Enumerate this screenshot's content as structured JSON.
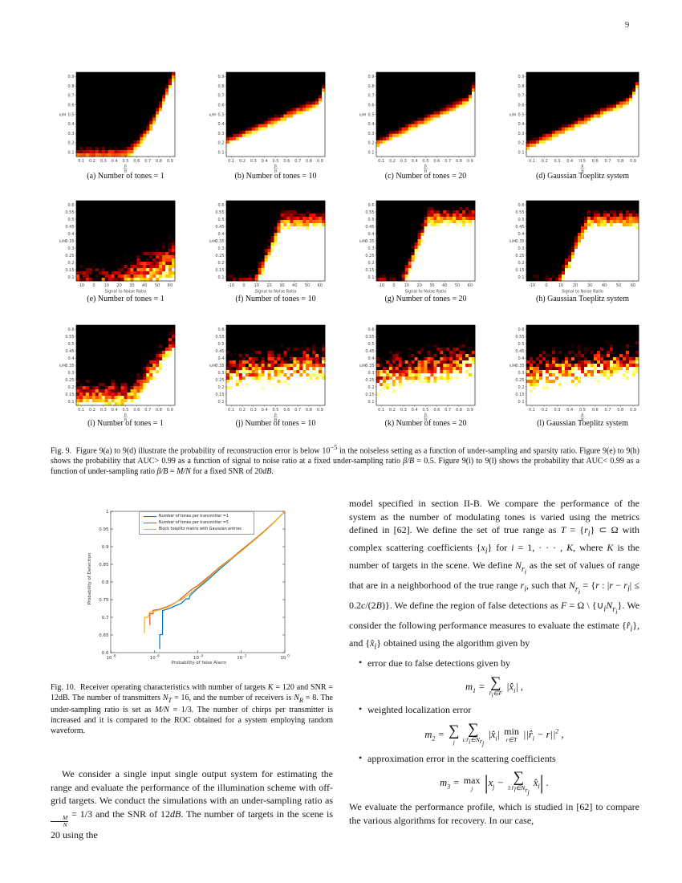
{
  "page": {
    "number": "9"
  },
  "figure9": {
    "caption_html": "Fig. 9.&nbsp;&nbsp;Figure 9(a) to 9(d) illustrate the probability of reconstruction error is below 10<sup>&minus;5</sup> in the noiseless setting as a function of under-sampling and sparsity ratio. Figure 9(e) to 9(h) shows the probability that AUC&gt; 0.99 as a function of signal to noise ratio at a fixed under-sampling ratio <i>&beta;/B</i> = 0.5. Figure 9(i) to 9(l) shows the probability that AUC&lt; 0.99 as a function of under-sampling ratio <i>&beta;/B</i> = <i>M/N</i> for a fixed SNR of 20<i>dB</i>.",
    "rows": [
      {
        "yticks": [
          "0.1",
          "0.2",
          "0.3",
          "0.4",
          "0.5",
          "0.6",
          "0.7",
          "0.8",
          "0.9"
        ],
        "xticks": [
          "0.1",
          "0.2",
          "0.3",
          "0.4",
          "0.5",
          "0.6",
          "0.7",
          "0.8",
          "0.9"
        ],
        "ylabel": "k/M",
        "xlabel_num": "β",
        "xlabel_den": "B"
      },
      {
        "yticks": [
          "0.1",
          "0.15",
          "0.2",
          "0.25",
          "0.3",
          "0.35",
          "0.4",
          "0.45",
          "0.5",
          "0.55",
          "0.6"
        ],
        "xticks": [
          "-10",
          "0",
          "10",
          "20",
          "30",
          "40",
          "50",
          "60"
        ],
        "ylabel": "k/M",
        "xlabel": "Signal to Noise Ratio"
      },
      {
        "yticks": [
          "0.1",
          "0.15",
          "0.2",
          "0.25",
          "0.3",
          "0.35",
          "0.4",
          "0.45",
          "0.5",
          "0.55",
          "0.6"
        ],
        "xticks": [
          "0.1",
          "0.2",
          "0.3",
          "0.4",
          "0.5",
          "0.6",
          "0.7",
          "0.8",
          "0.9"
        ],
        "ylabel": "k/M",
        "xlabel_num": "β",
        "xlabel_den": "B"
      }
    ],
    "panels": [
      {
        "id": "a",
        "caption": "(a) Number of tones = 1",
        "kind": "corner",
        "base": 0.03,
        "u0": 0.47,
        "p": 1.7,
        "amp": 0.97,
        "sharp": 7,
        "noise": 0.14,
        "streak": true
      },
      {
        "id": "b",
        "caption": "(b) Number of tones = 10",
        "kind": "lin",
        "b0": 0.18,
        "b1": 0.5,
        "ut": 0.94,
        "us": 3.0,
        "sharp": 9,
        "noise": 0.12
      },
      {
        "id": "c",
        "caption": "(c) Number of tones = 20",
        "kind": "lin",
        "b0": 0.16,
        "b1": 0.55,
        "ut": 0.94,
        "us": 2.5,
        "sharp": 9,
        "noise": 0.12
      },
      {
        "id": "d",
        "caption": "(d) Gaussian Toeplitz system",
        "kind": "lin",
        "b0": 0.12,
        "b1": 0.6,
        "ut": 0.92,
        "us": 2.0,
        "sharp": 9,
        "noise": 0.12
      },
      {
        "id": "e",
        "caption": "(e) Number of tones = 1",
        "kind": "ramp",
        "u0": 0.32,
        "slope": 0.5,
        "cap": 0.33,
        "base": -0.07,
        "sharp": 2.6,
        "noise": 0.32
      },
      {
        "id": "f",
        "caption": "(f) Number of tones = 10",
        "kind": "ramp",
        "u0": 0.28,
        "slope": 2.8,
        "cap": 0.76,
        "base": -0.05,
        "sharp": 5,
        "noise": 0.22
      },
      {
        "id": "g",
        "caption": "(g) Number of tones = 20",
        "kind": "ramp",
        "u0": 0.26,
        "slope": 3.2,
        "cap": 0.8,
        "base": -0.05,
        "sharp": 5,
        "noise": 0.22
      },
      {
        "id": "h",
        "caption": "(h) Gaussian Toeplitz system",
        "kind": "ramp",
        "u0": 0.28,
        "slope": 3.0,
        "cap": 0.77,
        "base": -0.05,
        "sharp": 5,
        "noise": 0.22
      },
      {
        "id": "i",
        "caption": "(i) Number of tones = 1",
        "kind": "wedge",
        "b0": 0.14,
        "u0": 0.56,
        "s": 1.5,
        "sharp": 4,
        "noise": 0.3
      },
      {
        "id": "j",
        "caption": "(j) Number of tones = 10",
        "kind": "lin",
        "b0": 0.42,
        "b1": 0.12,
        "sharp": 3.2,
        "noise": 0.4
      },
      {
        "id": "k",
        "caption": "(k) Number of tones = 20",
        "kind": "lin",
        "b0": 0.38,
        "b1": 0.2,
        "sharp": 3.2,
        "noise": 0.4
      },
      {
        "id": "l",
        "caption": "(l) Gaussian Toeplitz system",
        "kind": "lin",
        "b0": 0.42,
        "b1": 0.14,
        "sharp": 3.2,
        "noise": 0.4
      }
    ]
  },
  "figure10": {
    "caption_html": "Fig. 10.&nbsp;&nbsp;Receiver operating characteristics with number of targets <i>K</i> = 120 and SNR = 12dB. The number of transmitters <i>N<sub>T</sub></i> = 16, and the number of receivers is <i>N<sub>R</sub></i> = 8. The under-sampling ratio is set as <i>M/N</i> = 1/3. The number of chirps per transmitter is increased and it is compared to the ROC obtained for a system employing random waveform.",
    "chart_data": {
      "type": "line",
      "xscale": "log",
      "xlabel": "Probability of false Alarm",
      "ylabel": "Probability of Detection",
      "xlim_log10": [
        -8,
        0
      ],
      "ylim": [
        0.6,
        1.0
      ],
      "yticks": [
        "0.6",
        "0.65",
        "0.7",
        "0.75",
        "0.8",
        "0.85",
        "0.9",
        "0.95",
        "1"
      ],
      "xtick_exponents": [
        -8,
        -6,
        -4,
        -2,
        0
      ],
      "legend_position": "top-left-inside",
      "series": [
        {
          "name": "Number of tones per transmitter =1",
          "color": "#0072bd",
          "points_log10x_y": [
            [
              -5.75,
              0.61
            ],
            [
              -5.75,
              0.651
            ],
            [
              -5.62,
              0.651
            ],
            [
              -5.62,
              0.719
            ],
            [
              -5.45,
              0.722
            ],
            [
              -5.2,
              0.728
            ],
            [
              -5.0,
              0.733
            ],
            [
              -4.75,
              0.74
            ],
            [
              -4.55,
              0.752
            ],
            [
              -4.4,
              0.752
            ],
            [
              -4.35,
              0.762
            ],
            [
              -4.0,
              0.782
            ],
            [
              -3.5,
              0.808
            ],
            [
              -3.0,
              0.836
            ],
            [
              -2.5,
              0.862
            ],
            [
              -2.0,
              0.888
            ],
            [
              -1.5,
              0.914
            ],
            [
              -1.0,
              0.94
            ],
            [
              -0.5,
              0.968
            ],
            [
              0,
              1.0
            ]
          ]
        },
        {
          "name": "Number of tones per transmitter =5",
          "color": "#d95319",
          "points_log10x_y": [
            [
              -6.2,
              0.678
            ],
            [
              -6.2,
              0.71
            ],
            [
              -6.05,
              0.71
            ],
            [
              -6.05,
              0.72
            ],
            [
              -5.8,
              0.722
            ],
            [
              -5.5,
              0.728
            ],
            [
              -5.2,
              0.736
            ],
            [
              -4.9,
              0.746
            ],
            [
              -4.6,
              0.762
            ],
            [
              -4.3,
              0.778
            ],
            [
              -4.0,
              0.79
            ],
            [
              -3.5,
              0.815
            ],
            [
              -3.0,
              0.842
            ],
            [
              -2.5,
              0.865
            ],
            [
              -2.0,
              0.89
            ],
            [
              -1.5,
              0.915
            ],
            [
              -1.0,
              0.941
            ],
            [
              -0.5,
              0.969
            ],
            [
              0,
              1.0
            ]
          ]
        },
        {
          "name": "Block toeplitz matrix with Gaussian entries",
          "color": "#edb120",
          "points_log10x_y": [
            [
              -6.45,
              0.655
            ],
            [
              -6.45,
              0.7
            ],
            [
              -6.28,
              0.7
            ],
            [
              -6.28,
              0.702
            ],
            [
              -6.2,
              0.715
            ],
            [
              -6.0,
              0.717
            ],
            [
              -5.75,
              0.721
            ],
            [
              -5.5,
              0.726
            ],
            [
              -5.25,
              0.733
            ],
            [
              -5.0,
              0.742
            ],
            [
              -4.7,
              0.752
            ],
            [
              -4.4,
              0.765
            ],
            [
              -4.0,
              0.785
            ],
            [
              -3.5,
              0.812
            ],
            [
              -3.0,
              0.84
            ],
            [
              -2.5,
              0.864
            ],
            [
              -2.0,
              0.887
            ],
            [
              -1.5,
              0.913
            ],
            [
              -1.0,
              0.939
            ],
            [
              -0.5,
              0.968
            ],
            [
              0,
              1.0
            ]
          ]
        }
      ]
    }
  },
  "text": {
    "left_para_html": "We consider a single input single output system for estimating the range and evaluate the performance of the illumination scheme with off-grid targets. We conduct the simulations with an under-sampling ratio as <span class='frac'><span class='fn'>M</span><span>N</span></span> = 1/3 and the SNR of 12<i>dB</i>. The number of targets in the scene is 20 using the",
    "right_p1_html": "model specified in section II-B. We compare the performance of the system as the number of modulating tones is varied using the metrics defined in [62]. We define the set of true range as <i>T</i> = {<i>r<sub>i</sub></i>} &sub; &Omega; with complex scattering coefficients {<i>x<sub>i</sub></i>} for <i>i</i> = 1, &middot; &middot; &middot; , <i>K</i>, where <i>K</i> is the number of targets in the scene. We define <i>N<sub>r<sub>i</sub></sub></i> as the set of values of range that are in a neighborhood of the true range <i>r<sub>i</sub></i>, such that <i>N<sub>r<sub>i</sub></sub></i> = {<i>r</i> : |<i>r</i> &minus; <i>r<sub>i</sub></i>| &le; 0.2<i>c</i>/(2<i>B</i>)}. We define the region of false detections as <i>F</i> = &Omega; \\ {&cup;<sub><i>i</i></sub><i>N<sub>r<sub>i</sub></sub></i>}. We consider the following performance measures to evaluate the estimate {<i>r̂<sub>i</sub></i>}, and {<i>x̂<sub>i</sub></i>} obtained using the algorithm given by",
    "bullets": [
      "error due to false detections given by",
      "weighted localization error",
      "approximation error in the scattering coefficients"
    ],
    "eq1_html": "m<sub>1</sub> = <span class='ss'><span class='op'>&sum;</span><span class='lim'>r̂<sub>i</sub>&isin;F</span></span> |x̂<sub>i</sub>| ,",
    "eq2_html": "m<sub>2</sub> = <span class='ss'><span class='op'>&sum;</span><span class='lim'>j</span></span><span class='ss'><span class='op'>&sum;</span><span class='lim'>i:r̂<sub>i</sub>&isin;N<sub>r<sub>j</sub></sub></span></span> |x̂<sub>i</sub>| <span class='ss'><span class='optxt'>min</span><span class='lim'>r&isin;T</span></span> ||r̂<sub>i</sub> &minus; r||<sup>2</sup> ,",
    "eq3_html": "m<sub>3</sub> = <span class='ss'><span class='optxt'>max</span><span class='lim'>j</span></span> <span class='tb'>|</span>x<sub>j</sub> &minus; <span class='ss'><span class='op'>&sum;</span><span class='lim'>l:r̂<sub>l</sub>&isin;N<sub>r<sub>j</sub></sub></span></span> x̂<sub>l</sub><span class='tb'>|</span> .",
    "right_p2": "We evaluate the performance profile, which is studied in [62] to compare the various algorithms for recovery. In our case,"
  }
}
